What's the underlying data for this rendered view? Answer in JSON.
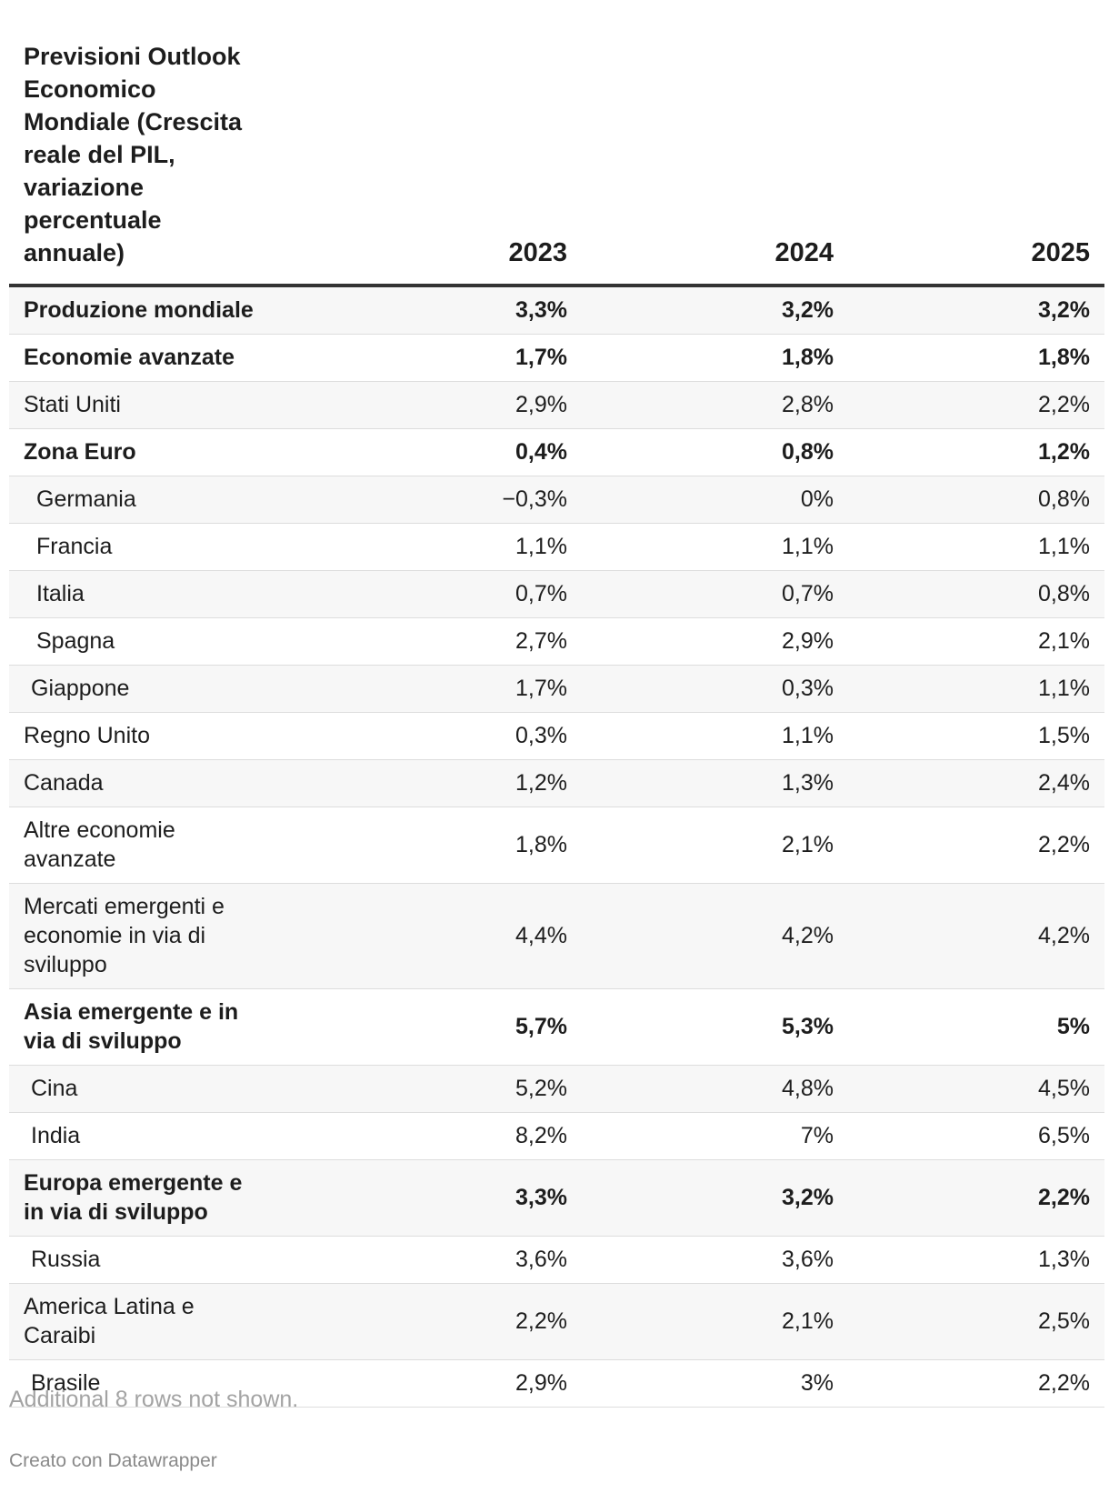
{
  "chart_data": {
    "type": "table",
    "title": "Previsioni Outlook Economico Mondiale (Crescita reale del PIL, variazione percentuale annuale)",
    "columns": [
      "2023",
      "2024",
      "2025"
    ],
    "rows": [
      {
        "label": "Produzione mondiale",
        "bold": true,
        "indent": 0,
        "values": [
          "3,3%",
          "3,2%",
          "3,2%"
        ]
      },
      {
        "label": "Economie avanzate",
        "bold": true,
        "indent": 0,
        "values": [
          "1,7%",
          "1,8%",
          "1,8%"
        ]
      },
      {
        "label": "Stati Uniti",
        "bold": false,
        "indent": 0,
        "values": [
          "2,9%",
          "2,8%",
          "2,2%"
        ]
      },
      {
        "label": "Zona Euro",
        "bold": true,
        "indent": 0,
        "values": [
          "0,4%",
          "0,8%",
          "1,2%"
        ]
      },
      {
        "label": "Germania",
        "bold": false,
        "indent": 2,
        "values": [
          "−0,3%",
          "0%",
          "0,8%"
        ]
      },
      {
        "label": "Francia",
        "bold": false,
        "indent": 2,
        "values": [
          "1,1%",
          "1,1%",
          "1,1%"
        ]
      },
      {
        "label": "Italia",
        "bold": false,
        "indent": 2,
        "values": [
          "0,7%",
          "0,7%",
          "0,8%"
        ]
      },
      {
        "label": "Spagna",
        "bold": false,
        "indent": 2,
        "values": [
          "2,7%",
          "2,9%",
          "2,1%"
        ]
      },
      {
        "label": "Giappone",
        "bold": false,
        "indent": 1,
        "values": [
          "1,7%",
          "0,3%",
          "1,1%"
        ]
      },
      {
        "label": "Regno Unito",
        "bold": false,
        "indent": 0,
        "values": [
          "0,3%",
          "1,1%",
          "1,5%"
        ]
      },
      {
        "label": "Canada",
        "bold": false,
        "indent": 0,
        "values": [
          "1,2%",
          "1,3%",
          "2,4%"
        ]
      },
      {
        "label": "Altre economie avanzate",
        "bold": false,
        "indent": 0,
        "values": [
          "1,8%",
          "2,1%",
          "2,2%"
        ]
      },
      {
        "label": "Mercati emergenti e economie in via di sviluppo",
        "bold": false,
        "indent": 0,
        "values": [
          "4,4%",
          "4,2%",
          "4,2%"
        ]
      },
      {
        "label": "Asia emergente e in via di sviluppo",
        "bold": true,
        "indent": 0,
        "values": [
          "5,7%",
          "5,3%",
          "5%"
        ]
      },
      {
        "label": "Cina",
        "bold": false,
        "indent": 1,
        "values": [
          "5,2%",
          "4,8%",
          "4,5%"
        ]
      },
      {
        "label": "India",
        "bold": false,
        "indent": 1,
        "values": [
          "8,2%",
          "7%",
          "6,5%"
        ]
      },
      {
        "label": "Europa emergente e in via di sviluppo",
        "bold": true,
        "indent": 0,
        "values": [
          "3,3%",
          "3,2%",
          "2,2%"
        ]
      },
      {
        "label": "Russia",
        "bold": false,
        "indent": 1,
        "values": [
          "3,6%",
          "3,6%",
          "1,3%"
        ]
      },
      {
        "label": "America Latina e Caraibi",
        "bold": false,
        "indent": 0,
        "values": [
          "2,2%",
          "2,1%",
          "2,5%"
        ]
      },
      {
        "label": "Brasile",
        "bold": false,
        "indent": 1,
        "values": [
          "2,9%",
          "3%",
          "2,2%"
        ]
      }
    ]
  },
  "footer": {
    "note": "Additional 8 rows not shown.",
    "credit": "Creato con Datawrapper"
  },
  "colors": {
    "text": "#1d1d1d",
    "stripe": "#f7f7f7",
    "header_rule": "#333333",
    "row_rule": "#dddddd",
    "note": "#a3a3a3"
  }
}
